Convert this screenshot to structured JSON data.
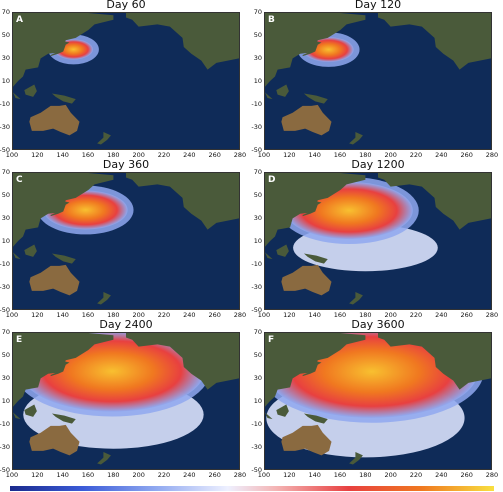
{
  "panels": [
    {
      "letter": "A",
      "title": "Day 60",
      "spread": 0.08
    },
    {
      "letter": "B",
      "title": "Day 120",
      "spread": 0.14
    },
    {
      "letter": "C",
      "title": "Day 360",
      "spread": 0.32
    },
    {
      "letter": "D",
      "title": "Day 1200",
      "spread": 0.55
    },
    {
      "letter": "E",
      "title": "Day 2400",
      "spread": 0.85
    },
    {
      "letter": "F",
      "title": "Day 3600",
      "spread": 1.0
    }
  ],
  "axes": {
    "x_ticks": [
      "100",
      "120",
      "140",
      "160",
      "180",
      "200",
      "220",
      "240",
      "260",
      "280"
    ],
    "y_ticks": [
      "70",
      "50",
      "30",
      "10",
      "-10",
      "-30",
      "-50"
    ]
  },
  "colors": {
    "ocean": "#0b2145",
    "land": "#4a5a3a",
    "desert": "#8a6a40",
    "plume_core": "#f8c030",
    "plume_mid": "#e84040",
    "plume_edge": "#8fa8f0"
  }
}
